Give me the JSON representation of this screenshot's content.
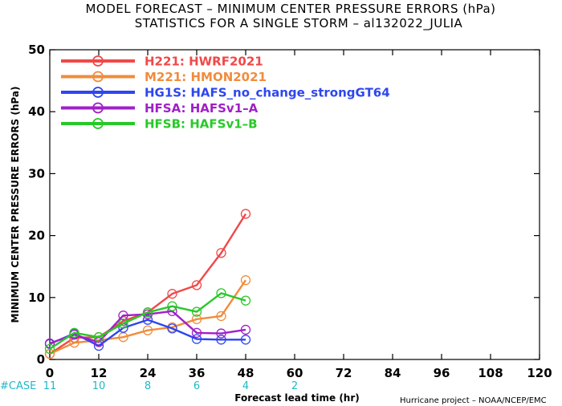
{
  "chart_data": {
    "type": "line",
    "title": "MODEL FORECAST – MINIMUM CENTER PRESSURE ERRORS (hPa)",
    "subtitle": "STATISTICS FOR A SINGLE STORM – al132022_JULIA",
    "xlabel": "Forecast lead time (hr)",
    "ylabel": "MINIMUM CENTER PRESSURE ERRORS (hPa)",
    "xlim": [
      0,
      120
    ],
    "ylim": [
      0,
      50
    ],
    "xticks": [
      0,
      12,
      24,
      36,
      48,
      60,
      72,
      84,
      96,
      108,
      120
    ],
    "yticks": [
      0,
      10,
      20,
      30,
      40,
      50
    ],
    "legend_position": "top-left",
    "case_label": "#CASE",
    "case_counts": [
      {
        "x": 0,
        "value": "11"
      },
      {
        "x": 12,
        "value": "10"
      },
      {
        "x": 24,
        "value": "8"
      },
      {
        "x": 36,
        "value": "6"
      },
      {
        "x": 48,
        "value": "4"
      },
      {
        "x": 60,
        "value": "2"
      }
    ],
    "x": [
      0,
      6,
      12,
      18,
      24,
      30,
      36,
      42,
      48
    ],
    "series": [
      {
        "name": "H221:  HWRF2021",
        "color": "#f04848",
        "values": [
          0.9,
          3.5,
          3.6,
          6.2,
          7.6,
          10.6,
          12.0,
          17.2,
          23.5
        ]
      },
      {
        "name": "M221:  HMON2021",
        "color": "#f08c3c",
        "values": [
          0.9,
          2.7,
          3.1,
          3.6,
          4.7,
          5.2,
          6.5,
          7.0,
          12.8
        ]
      },
      {
        "name": "HG1S:  HAFS_no_change_strongGT64",
        "color": "#2e46ee",
        "values": [
          2.5,
          4.2,
          2.2,
          5.1,
          6.4,
          5.0,
          3.3,
          3.2,
          3.2
        ]
      },
      {
        "name": "HFSA:  HAFSv1–A",
        "color": "#a020c8",
        "values": [
          2.6,
          4.0,
          2.8,
          7.1,
          7.3,
          7.8,
          4.3,
          4.2,
          4.8
        ]
      },
      {
        "name": "HFSB:  HAFSv1–B",
        "color": "#28c828",
        "values": [
          1.7,
          4.3,
          3.6,
          5.8,
          7.6,
          8.6,
          7.7,
          10.7,
          9.5
        ]
      }
    ]
  },
  "credit": "Hurricane project – NOAA/NCEP/EMC"
}
